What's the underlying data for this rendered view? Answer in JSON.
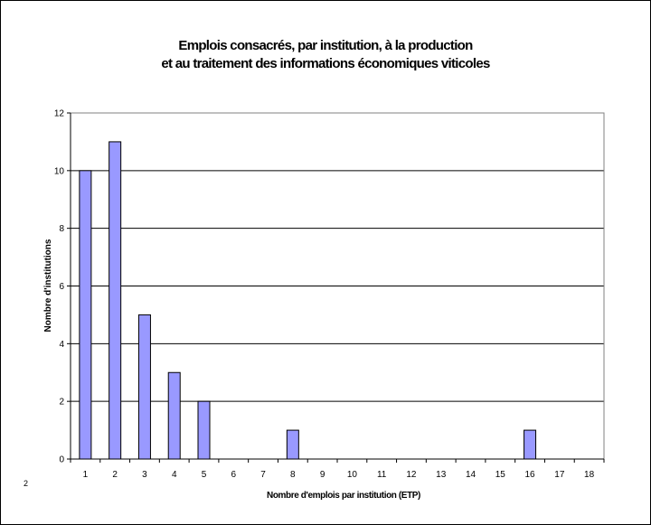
{
  "chart_data": {
    "type": "bar",
    "title_line1": "Emplois consacrés, par institution, à la production",
    "title_line2": "et au traitement des informations économiques viticoles",
    "xlabel": "Nombre d'emplois par institution (ETP)",
    "ylabel": "Nombre d'institutions",
    "categories": [
      "1",
      "2",
      "3",
      "4",
      "5",
      "6",
      "7",
      "8",
      "9",
      "10",
      "11",
      "12",
      "13",
      "14",
      "15",
      "16",
      "17",
      "18"
    ],
    "values": [
      10,
      11,
      5,
      3,
      2,
      0,
      0,
      1,
      0,
      0,
      0,
      0,
      0,
      0,
      0,
      1,
      0,
      0
    ],
    "ylim": [
      0,
      12
    ],
    "yticks": [
      0,
      2,
      4,
      6,
      8,
      10,
      12
    ],
    "grid": true,
    "legend": "none",
    "bar_color": "#9999FF",
    "bar_edge": "#000000"
  },
  "stray_mark": "2"
}
